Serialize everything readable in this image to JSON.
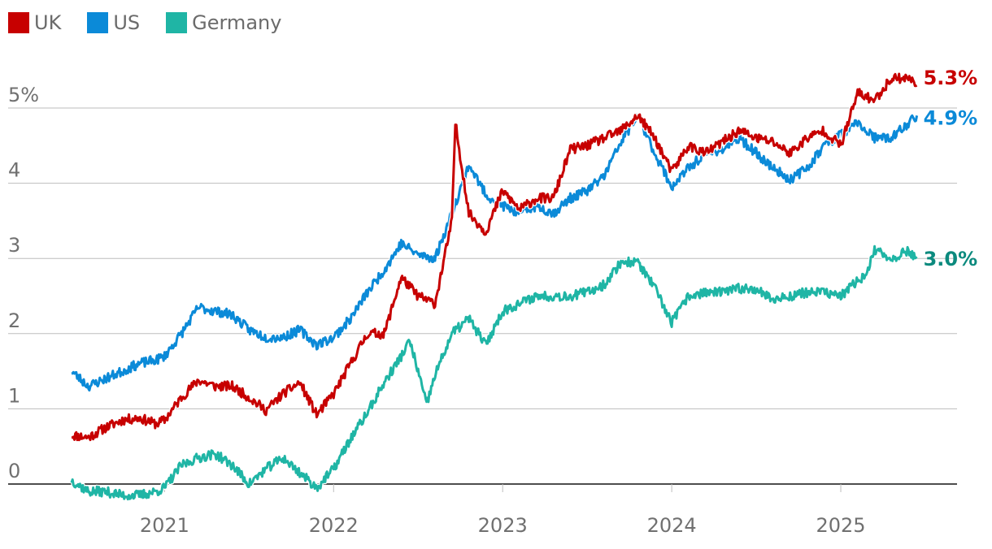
{
  "chart_data": {
    "type": "line",
    "title": "",
    "xlabel": "",
    "ylabel": "",
    "y_unit_label": "5%",
    "ylim": [
      0,
      5.5
    ],
    "yticks": [
      0,
      1,
      2,
      3,
      4,
      5
    ],
    "ytick_labels": [
      "0",
      "1",
      "2",
      "3",
      "4",
      "5%"
    ],
    "xlim": [
      2020.45,
      2025.5
    ],
    "xticks": [
      2021,
      2022,
      2023,
      2024,
      2025
    ],
    "xtick_labels": [
      "2021",
      "2022",
      "2023",
      "2024",
      "2025"
    ],
    "grid": true,
    "legend": "top-left",
    "series": [
      {
        "name": "UK",
        "color": "#c70000",
        "end_label": "5.3%",
        "x": [
          2020.45,
          2020.55,
          2020.65,
          2020.75,
          2020.85,
          2020.95,
          2021.0,
          2021.1,
          2021.2,
          2021.3,
          2021.4,
          2021.5,
          2021.6,
          2021.7,
          2021.8,
          2021.9,
          2022.0,
          2022.1,
          2022.2,
          2022.3,
          2022.4,
          2022.5,
          2022.6,
          2022.7,
          2022.72,
          2022.76,
          2022.8,
          2022.9,
          2023.0,
          2023.1,
          2023.2,
          2023.3,
          2023.4,
          2023.5,
          2023.6,
          2023.7,
          2023.8,
          2023.9,
          2024.0,
          2024.1,
          2024.2,
          2024.3,
          2024.4,
          2024.5,
          2024.6,
          2024.7,
          2024.8,
          2024.9,
          2025.0,
          2025.1,
          2025.2,
          2025.3,
          2025.4,
          2025.45
        ],
        "values": [
          0.65,
          0.62,
          0.75,
          0.85,
          0.88,
          0.8,
          0.85,
          1.15,
          1.38,
          1.3,
          1.3,
          1.15,
          0.98,
          1.2,
          1.35,
          0.92,
          1.2,
          1.6,
          2.0,
          2.0,
          2.75,
          2.5,
          2.4,
          3.5,
          4.8,
          4.2,
          3.6,
          3.35,
          3.9,
          3.65,
          3.8,
          3.8,
          4.45,
          4.5,
          4.6,
          4.7,
          4.9,
          4.6,
          4.15,
          4.5,
          4.4,
          4.55,
          4.7,
          4.6,
          4.55,
          4.4,
          4.6,
          4.7,
          4.5,
          5.2,
          5.1,
          5.4,
          5.4,
          5.3
        ]
      },
      {
        "name": "US",
        "color": "#0b8ad8",
        "end_label": "4.9%",
        "x": [
          2020.45,
          2020.55,
          2020.65,
          2020.75,
          2020.85,
          2020.95,
          2021.0,
          2021.1,
          2021.2,
          2021.3,
          2021.4,
          2021.5,
          2021.6,
          2021.7,
          2021.8,
          2021.9,
          2022.0,
          2022.1,
          2022.2,
          2022.3,
          2022.4,
          2022.5,
          2022.6,
          2022.7,
          2022.8,
          2022.9,
          2023.0,
          2023.1,
          2023.2,
          2023.3,
          2023.4,
          2023.5,
          2023.6,
          2023.7,
          2023.8,
          2023.9,
          2024.0,
          2024.1,
          2024.2,
          2024.3,
          2024.4,
          2024.5,
          2024.6,
          2024.7,
          2024.8,
          2024.9,
          2025.0,
          2025.1,
          2025.2,
          2025.3,
          2025.4,
          2025.45
        ],
        "values": [
          1.5,
          1.3,
          1.4,
          1.5,
          1.6,
          1.65,
          1.7,
          2.0,
          2.35,
          2.3,
          2.25,
          2.05,
          1.95,
          1.95,
          2.05,
          1.85,
          1.95,
          2.2,
          2.55,
          2.85,
          3.2,
          3.05,
          3.0,
          3.6,
          4.25,
          3.85,
          3.7,
          3.6,
          3.7,
          3.6,
          3.8,
          3.9,
          4.1,
          4.55,
          4.9,
          4.4,
          3.95,
          4.2,
          4.4,
          4.45,
          4.6,
          4.4,
          4.2,
          4.05,
          4.2,
          4.5,
          4.65,
          4.8,
          4.6,
          4.6,
          4.8,
          4.9
        ]
      },
      {
        "name": "Germany",
        "color": "#1fb5a5",
        "end_label": "3.0%",
        "end_label_color": "#0c8a7e",
        "x": [
          2020.45,
          2020.55,
          2020.65,
          2020.75,
          2020.85,
          2020.95,
          2021.0,
          2021.1,
          2021.2,
          2021.3,
          2021.4,
          2021.5,
          2021.6,
          2021.7,
          2021.8,
          2021.9,
          2022.0,
          2022.1,
          2022.2,
          2022.3,
          2022.4,
          2022.45,
          2022.5,
          2022.55,
          2022.6,
          2022.7,
          2022.8,
          2022.9,
          2023.0,
          2023.1,
          2023.2,
          2023.3,
          2023.4,
          2023.5,
          2023.6,
          2023.7,
          2023.8,
          2023.9,
          2024.0,
          2024.1,
          2024.2,
          2024.3,
          2024.4,
          2024.5,
          2024.6,
          2024.7,
          2024.8,
          2024.9,
          2025.0,
          2025.1,
          2025.15,
          2025.2,
          2025.3,
          2025.4,
          2025.45
        ],
        "values": [
          0.05,
          -0.1,
          -0.1,
          -0.15,
          -0.15,
          -0.1,
          -0.05,
          0.25,
          0.35,
          0.4,
          0.25,
          0.0,
          0.2,
          0.35,
          0.15,
          -0.05,
          0.2,
          0.6,
          0.95,
          1.35,
          1.7,
          1.9,
          1.5,
          1.05,
          1.45,
          2.0,
          2.2,
          1.85,
          2.3,
          2.4,
          2.5,
          2.5,
          2.5,
          2.55,
          2.65,
          2.95,
          2.95,
          2.6,
          2.15,
          2.5,
          2.55,
          2.55,
          2.6,
          2.6,
          2.45,
          2.5,
          2.55,
          2.55,
          2.5,
          2.7,
          2.8,
          3.1,
          3.0,
          3.1,
          3.0
        ]
      }
    ]
  }
}
